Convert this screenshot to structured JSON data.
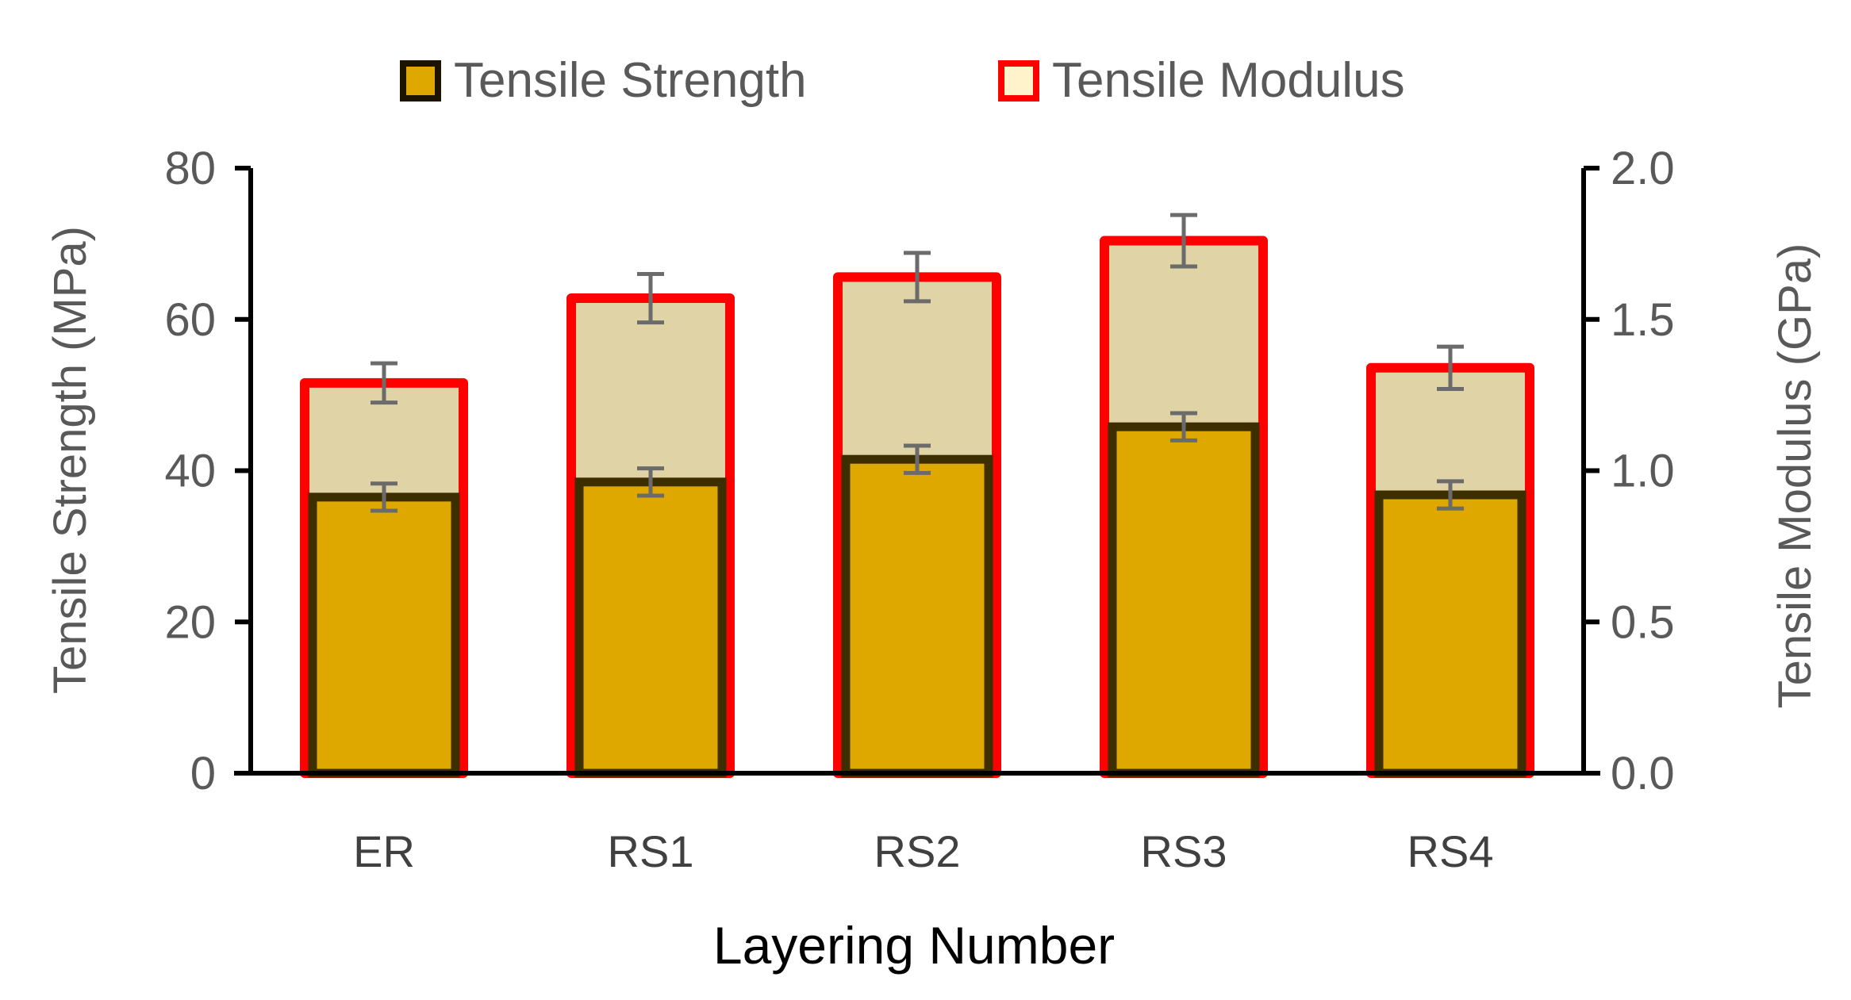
{
  "chart_data": {
    "type": "bar",
    "xlabel": "Layering Number",
    "categories": [
      "ER",
      "RS1",
      "RS2",
      "RS3",
      "RS4"
    ],
    "series": [
      {
        "name": "Tensile Strength",
        "axis": "left",
        "values": [
          36.5,
          38.5,
          41.5,
          45.8,
          36.8
        ],
        "errors": [
          1.8,
          1.8,
          1.8,
          1.8,
          1.8
        ],
        "fill": "#DFA800",
        "stroke": "#3D2E00"
      },
      {
        "name": "Tensile Modulus",
        "axis": "right",
        "values": [
          1.29,
          1.57,
          1.64,
          1.76,
          1.34
        ],
        "errors": [
          0.065,
          0.08,
          0.08,
          0.085,
          0.07
        ],
        "fill": "#E0D3A6",
        "stroke": "#FF0000"
      }
    ],
    "y_left": {
      "label": "Tensile Strength (MPa)",
      "lim": [
        0,
        80
      ],
      "ticks": [
        0,
        20,
        40,
        60,
        80
      ],
      "tick_labels": [
        "0",
        "20",
        "40",
        "60",
        "80"
      ]
    },
    "y_right": {
      "label": "Tensile Modulus (GPa)",
      "lim": [
        0,
        2.0
      ],
      "ticks": [
        0,
        0.5,
        1.0,
        1.5,
        2.0
      ],
      "tick_labels": [
        "0.0",
        "0.5",
        "1.0",
        "1.5",
        "2.0"
      ]
    },
    "legend": [
      "Tensile Strength",
      "Tensile Modulus"
    ],
    "legend_position": "top-center",
    "grid": false,
    "error_bar_color": "#6B6B6B"
  }
}
